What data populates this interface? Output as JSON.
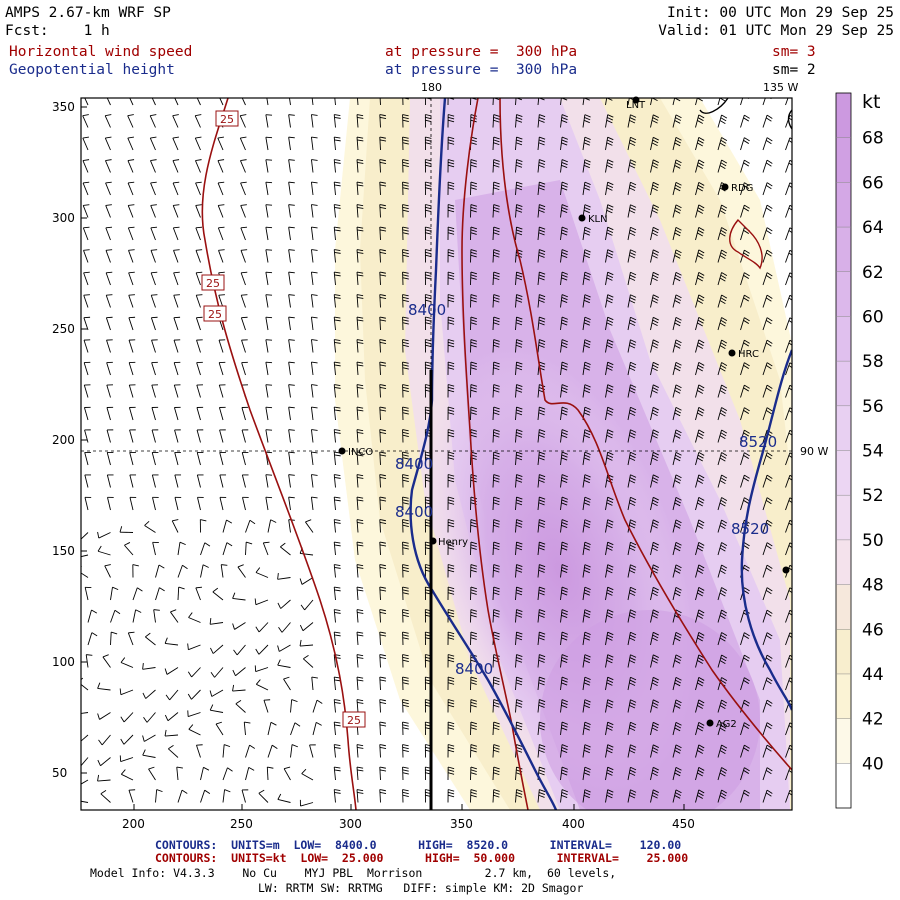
{
  "header": {
    "model": "AMPS 2.67-km WRF SP",
    "init": "Init: 00 UTC Mon 29 Sep 25",
    "fcst": "Fcst:    1 h",
    "valid": "Valid: 01 UTC Mon 29 Sep 25",
    "field1_name": "Horizontal wind speed",
    "field1_level": "at pressure =  300 hPa",
    "field1_sm": "sm= 3",
    "field2_name": "Geopotential height",
    "field2_level": "at pressure =  300 hPa",
    "field2_sm": "sm= 2"
  },
  "map": {
    "meridian_labels": [
      "180",
      "135 W"
    ],
    "parallel_label": "90 W",
    "x_ticks": [
      "200",
      "250",
      "300",
      "350",
      "400",
      "450"
    ],
    "y_ticks": [
      "350",
      "300",
      "250",
      "200",
      "150",
      "100",
      "50"
    ],
    "stations": [
      {
        "name": "LNT"
      },
      {
        "name": "RDG"
      },
      {
        "name": "KLN"
      },
      {
        "name": "HRC"
      },
      {
        "name": "INCO"
      },
      {
        "name": "Henry"
      },
      {
        "name": "AG2"
      }
    ],
    "height_contour_labels": [
      "8400",
      "8400",
      "8400",
      "8400",
      "8520",
      "8520"
    ],
    "speed_contour_labels": [
      "25",
      "25",
      "25",
      "25"
    ]
  },
  "colorbar": {
    "unit": "kt",
    "levels": [
      "68",
      "66",
      "64",
      "62",
      "60",
      "58",
      "56",
      "54",
      "52",
      "50",
      "48",
      "46",
      "44",
      "42",
      "40"
    ],
    "colors": [
      "#cc99e0",
      "#d0a0e3",
      "#d4a8e6",
      "#d8b0e8",
      "#dcb8eb",
      "#e0c0ee",
      "#e4c8f0",
      "#e8d0f2",
      "#ecd6f3",
      "#f0dcf2",
      "#f4e2ec",
      "#f6e8dc",
      "#f8eece",
      "#fbf3d5",
      "#fdf9e8",
      "#ffffff"
    ]
  },
  "footer": {
    "contours1": "CONTOURS:  UNITS=m  LOW=  8400.0      HIGH=  8520.0      INTERVAL=    120.00",
    "contours2": "CONTOURS:  UNITS=kt  LOW=  25.000      HIGH=  50.000      INTERVAL=    25.000",
    "model_info": "Model Info: V4.3.3    No Cu    MYJ PBL  Morrison         2.7 km,  60 levels,",
    "physics": "LW: RRTM SW: RRTMG   DIFF: simple KM: 2D Smagor"
  }
}
